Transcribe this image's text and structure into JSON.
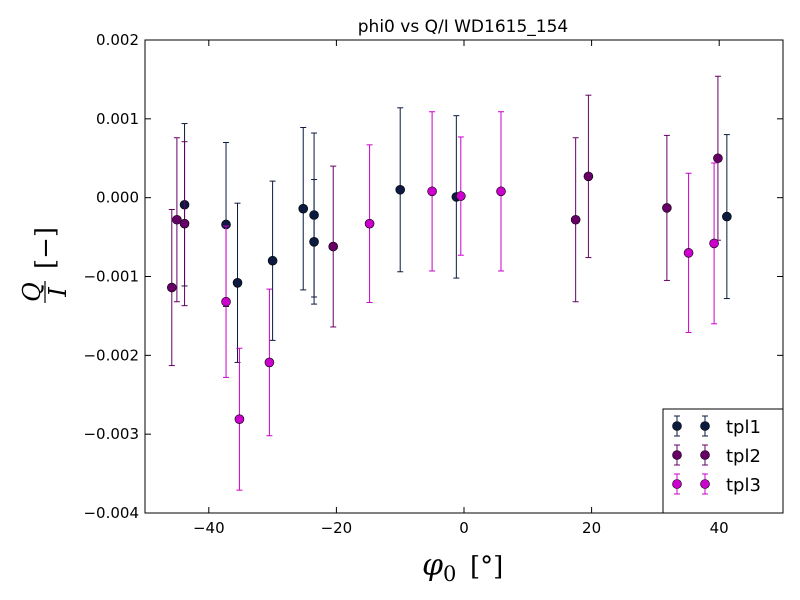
{
  "chart_data": {
    "type": "scatter",
    "title": "phi0 vs Q/I WD1615_154",
    "xlabel": {
      "symbol": "φ",
      "subscript": "0",
      "unit": "[°]"
    },
    "ylabel": {
      "numerator": "Q",
      "denominator": "I",
      "unit": "[−]"
    },
    "xlim": [
      -50,
      50
    ],
    "ylim": [
      -0.004,
      0.002
    ],
    "x_ticks": [
      -40,
      -20,
      0,
      20,
      40
    ],
    "x_tick_labels": [
      "−40",
      "−20",
      "0",
      "20",
      "40"
    ],
    "y_ticks": [
      -0.004,
      -0.003,
      -0.002,
      -0.001,
      0.0,
      0.001,
      0.002
    ],
    "y_tick_labels": [
      "−0.004",
      "−0.003",
      "−0.002",
      "−0.001",
      "0.000",
      "0.001",
      "0.002"
    ],
    "grid": false,
    "legend_position": "bottom-right",
    "series": [
      {
        "name": "tpl1",
        "color": "#0c1a40",
        "points": [
          {
            "x": -43.8,
            "y": -9e-05,
            "err": 0.00103
          },
          {
            "x": -37.3,
            "y": -0.00034,
            "err": 0.00104
          },
          {
            "x": -35.5,
            "y": -0.00108,
            "err": 0.00101
          },
          {
            "x": -30.0,
            "y": -0.0008,
            "err": 0.00101
          },
          {
            "x": -25.2,
            "y": -0.00014,
            "err": 0.00103
          },
          {
            "x": -23.5,
            "y": -0.00022,
            "err": 0.00104
          },
          {
            "x": -23.5,
            "y": -0.00056,
            "err": 0.00079
          },
          {
            "x": -10.0,
            "y": 0.0001,
            "err": 0.00104
          },
          {
            "x": -1.2,
            "y": 1e-05,
            "err": 0.00103
          },
          {
            "x": 41.2,
            "y": -0.00024,
            "err": 0.00104
          }
        ]
      },
      {
        "name": "tpl2",
        "color": "#660066",
        "points": [
          {
            "x": -45.8,
            "y": -0.00114,
            "err": 0.00099
          },
          {
            "x": -45.0,
            "y": -0.00028,
            "err": 0.00104
          },
          {
            "x": -43.8,
            "y": -0.00033,
            "err": 0.00104
          },
          {
            "x": -20.5,
            "y": -0.00062,
            "err": 0.00102
          },
          {
            "x": 17.5,
            "y": -0.00028,
            "err": 0.00104
          },
          {
            "x": 19.5,
            "y": 0.00027,
            "err": 0.00103
          },
          {
            "x": 31.8,
            "y": -0.00013,
            "err": 0.00092
          },
          {
            "x": 39.8,
            "y": 0.0005,
            "err": 0.00104
          }
        ]
      },
      {
        "name": "tpl3",
        "color": "#cc00cc",
        "points": [
          {
            "x": -37.3,
            "y": -0.00132,
            "err": 0.00096
          },
          {
            "x": -35.2,
            "y": -0.00281,
            "err": 0.0009
          },
          {
            "x": -30.5,
            "y": -0.00209,
            "err": 0.00093
          },
          {
            "x": -14.8,
            "y": -0.00033,
            "err": 0.001
          },
          {
            "x": -5.0,
            "y": 8e-05,
            "err": 0.00101
          },
          {
            "x": -0.5,
            "y": 2e-05,
            "err": 0.00075
          },
          {
            "x": 5.8,
            "y": 8e-05,
            "err": 0.00101
          },
          {
            "x": 35.2,
            "y": -0.0007,
            "err": 0.00101
          },
          {
            "x": 39.2,
            "y": -0.00058,
            "err": 0.00102
          }
        ]
      }
    ]
  }
}
